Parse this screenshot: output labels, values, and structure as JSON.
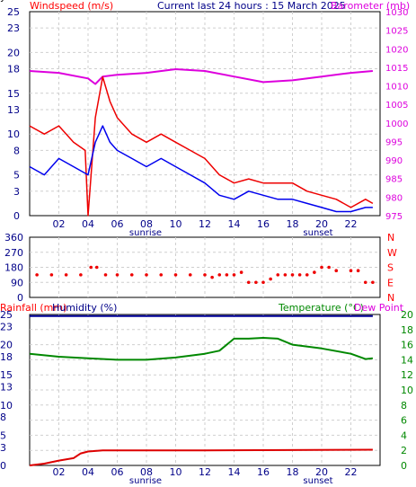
{
  "header": {
    "wind_label": "Windspeed (m/s)",
    "current_label": "Current last 24 hours : 15 March 2025",
    "baro_label": "Barometer (mb)"
  },
  "x_axis": {
    "hour_ticks": [
      "02",
      "04",
      "06",
      "08",
      "10",
      "12",
      "14",
      "16",
      "18",
      "20",
      "22"
    ],
    "sunrise_label": "sunrise",
    "sunset_label": "sunset"
  },
  "middle": {
    "degree_ticks": [
      "360",
      "270",
      "180",
      "90",
      "0"
    ],
    "compass_ticks": [
      "N",
      "W",
      "S",
      "E",
      "N"
    ]
  },
  "bottom_header": {
    "rainfall_label": "Rainfall (mm)",
    "humidity_label": "Humidity (%)",
    "temperature_label": "Temperature (°C)",
    "dewpoint_label": "Dew Point"
  },
  "colors": {
    "wind_avg": "#0000ee",
    "wind_gust": "#ee0000",
    "barometer": "#dd00dd",
    "wind_dir": "#ee0000",
    "humidity": "#000099",
    "rain": "#dd0000",
    "temperature": "#008800",
    "dewpoint": "#dd00dd"
  },
  "chart_data": [
    {
      "type": "line",
      "x_unit": "hours",
      "xlim": [
        0,
        24
      ],
      "series": [
        {
          "color": "blue",
          "x": [
            0,
            1,
            2,
            3,
            4,
            4.5,
            5,
            5.5,
            6,
            7,
            8,
            9,
            10,
            11,
            12,
            13,
            14,
            15,
            16,
            17,
            18,
            19,
            20,
            21,
            22,
            23,
            23.5
          ],
          "values": [
            6,
            5,
            7,
            6,
            5,
            9,
            11,
            9,
            8,
            7,
            6,
            7,
            6,
            5,
            4,
            2.5,
            2,
            3,
            2.5,
            2,
            2,
            1.5,
            1,
            0.5,
            0.5,
            1,
            1
          ]
        },
        {
          "color": "red",
          "x": [
            0,
            1,
            2,
            3,
            3.8,
            4,
            4.5,
            5,
            5.5,
            6,
            7,
            8,
            9,
            10,
            11,
            12,
            13,
            14,
            15,
            16,
            17,
            18,
            19,
            20,
            21,
            22,
            23,
            23.5
          ],
          "values": [
            11,
            10,
            11,
            9,
            8,
            0,
            12,
            17,
            14,
            12,
            10,
            9,
            10,
            9,
            8,
            7,
            5,
            4,
            4.5,
            4,
            4,
            4,
            3,
            2.5,
            2,
            1,
            2,
            1.5
          ]
        }
      ],
      "ylim": [
        0,
        25
      ],
      "y_ticks": [
        0,
        3,
        5,
        8,
        10,
        13,
        15,
        18,
        20,
        23,
        25
      ]
    },
    {
      "type": "line",
      "x_unit": "hours",
      "xlim": [
        0,
        24
      ],
      "series": [
        {
          "color": "magenta",
          "x": [
            0,
            2,
            4,
            4.5,
            5,
            6,
            8,
            10,
            12,
            14,
            16,
            18,
            20,
            22,
            23.5
          ],
          "values": [
            1014,
            1013.5,
            1012,
            1010.5,
            1012.5,
            1013,
            1013.5,
            1014.5,
            1014,
            1012.5,
            1011,
            1011.5,
            1012.5,
            1013.5,
            1014
          ]
        }
      ],
      "ylim": [
        975,
        1030
      ],
      "y_ticks": [
        975,
        980,
        985,
        990,
        995,
        1000,
        1005,
        1010,
        1015,
        1020,
        1025,
        1030
      ]
    },
    {
      "type": "scatter",
      "x_unit": "hours",
      "xlim": [
        0,
        24
      ],
      "x": [
        0.5,
        1.5,
        2.5,
        3.5,
        4.2,
        4.6,
        5.2,
        6,
        7,
        8,
        9,
        10,
        11,
        12,
        12.5,
        13,
        13.5,
        14,
        14.5,
        15,
        15.5,
        16,
        16.5,
        17,
        17.5,
        18,
        18.5,
        19,
        19.5,
        20,
        20.5,
        21,
        22,
        22.5,
        23,
        23.5
      ],
      "values": [
        135,
        135,
        135,
        135,
        180,
        180,
        135,
        135,
        135,
        135,
        135,
        135,
        135,
        135,
        120,
        135,
        135,
        135,
        150,
        90,
        90,
        90,
        110,
        135,
        135,
        135,
        135,
        135,
        150,
        180,
        180,
        160,
        160,
        160,
        90,
        90
      ],
      "ylim": [
        0,
        360
      ],
      "y_ticks": [
        0,
        90,
        180,
        270,
        360
      ]
    },
    {
      "type": "line",
      "x_unit": "hours",
      "xlim": [
        0,
        24
      ],
      "series": [
        {
          "color": "navy",
          "x": [
            0,
            23.5
          ],
          "values": [
            99,
            99
          ]
        },
        {
          "color": "red",
          "x": [
            0,
            1,
            2,
            3,
            3.5,
            4,
            5,
            12,
            23.5
          ],
          "values": [
            0,
            0.3,
            0.8,
            1.2,
            2,
            2.3,
            2.5,
            2.5,
            2.6
          ]
        }
      ],
      "ylim": [
        0,
        100
      ],
      "y_ticks": [
        0,
        10,
        20,
        30,
        40,
        50,
        60,
        70,
        80,
        90,
        100
      ],
      "y2_ticks": [
        0,
        3,
        5,
        8,
        10,
        13,
        15,
        18,
        20,
        23,
        25
      ]
    },
    {
      "type": "line",
      "x_unit": "hours",
      "xlim": [
        0,
        24
      ],
      "series": [
        {
          "color": "green",
          "x": [
            0,
            2,
            4,
            6,
            8,
            10,
            12,
            13,
            14,
            15,
            16,
            17,
            18,
            20,
            22,
            23,
            23.5
          ],
          "values": [
            14.8,
            14.4,
            14.2,
            14,
            14,
            14.3,
            14.8,
            15.2,
            16.8,
            16.8,
            16.9,
            16.8,
            16,
            15.5,
            14.8,
            14.1,
            14.2
          ]
        }
      ],
      "ylim": [
        0,
        20
      ],
      "y_ticks": [
        0,
        2,
        4,
        6,
        8,
        10,
        12,
        14,
        16,
        18,
        20
      ]
    }
  ]
}
